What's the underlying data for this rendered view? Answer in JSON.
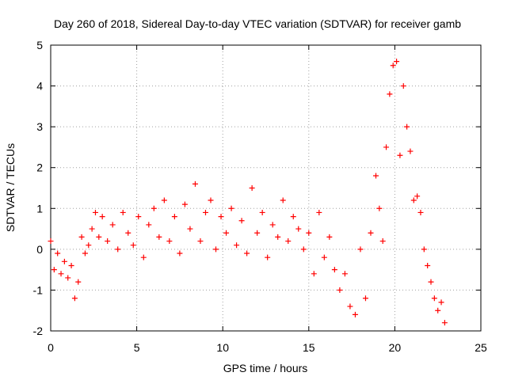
{
  "chart_data": {
    "type": "scatter",
    "title": "Day 260 of 2018, Sidereal Day-to-day VTEC variation (SDTVAR) for receiver gamb",
    "xlabel": "GPS time / hours",
    "ylabel": "SDTVAR / TECUs",
    "xlim": [
      0,
      25
    ],
    "ylim": [
      -2,
      5
    ],
    "xticks": [
      "0",
      "5",
      "10",
      "15",
      "20",
      "25"
    ],
    "yticks": [
      "-2",
      "-1",
      "0",
      "1",
      "2",
      "3",
      "4",
      "5"
    ],
    "grid": true,
    "marker": "plus",
    "color": "#ff0000",
    "series": [
      {
        "name": "SDTVAR",
        "x": [
          0,
          0.2,
          0.4,
          0.6,
          0.8,
          1.0,
          1.2,
          1.4,
          1.6,
          1.8,
          2.0,
          2.2,
          2.4,
          2.6,
          2.8,
          3.0,
          3.3,
          3.6,
          3.9,
          4.2,
          4.5,
          4.8,
          5.1,
          5.4,
          5.7,
          6.0,
          6.3,
          6.6,
          6.9,
          7.2,
          7.5,
          7.8,
          8.1,
          8.4,
          8.7,
          9.0,
          9.3,
          9.6,
          9.9,
          10.2,
          10.5,
          10.8,
          11.1,
          11.4,
          11.7,
          12.0,
          12.3,
          12.6,
          12.9,
          13.2,
          13.5,
          13.8,
          14.1,
          14.4,
          14.7,
          15.0,
          15.3,
          15.6,
          15.9,
          16.2,
          16.5,
          16.8,
          17.1,
          17.4,
          17.7,
          18.0,
          18.3,
          18.6,
          18.9,
          19.1,
          19.3,
          19.5,
          19.7,
          19.9,
          20.1,
          20.3,
          20.5,
          20.7,
          20.9,
          21.1,
          21.3,
          21.5,
          21.7,
          21.9,
          22.1,
          22.3,
          22.5,
          22.7,
          22.9
        ],
        "y": [
          0.2,
          -0.5,
          -0.1,
          -0.6,
          -0.3,
          -0.7,
          -0.4,
          -1.2,
          -0.8,
          0.3,
          -0.1,
          0.1,
          0.5,
          0.9,
          0.3,
          0.8,
          0.2,
          0.6,
          0.0,
          0.9,
          0.4,
          0.1,
          0.8,
          -0.2,
          0.6,
          1.0,
          0.3,
          1.2,
          0.2,
          0.8,
          -0.1,
          1.1,
          0.5,
          1.6,
          0.2,
          0.9,
          1.2,
          0.0,
          0.8,
          0.4,
          1.0,
          0.1,
          0.7,
          -0.1,
          1.5,
          0.4,
          0.9,
          -0.2,
          0.6,
          0.3,
          1.2,
          0.2,
          0.8,
          0.5,
          0.0,
          0.4,
          -0.6,
          0.9,
          -0.2,
          0.3,
          -0.5,
          -1.0,
          -0.6,
          -1.4,
          -1.6,
          0.0,
          -1.2,
          0.4,
          1.8,
          1.0,
          0.2,
          2.5,
          3.8,
          4.5,
          4.6,
          2.3,
          4.0,
          3.0,
          2.4,
          1.2,
          1.3,
          0.9,
          0.0,
          -0.4,
          -0.8,
          -1.2,
          -1.5,
          -1.3,
          -1.8
        ]
      }
    ]
  }
}
